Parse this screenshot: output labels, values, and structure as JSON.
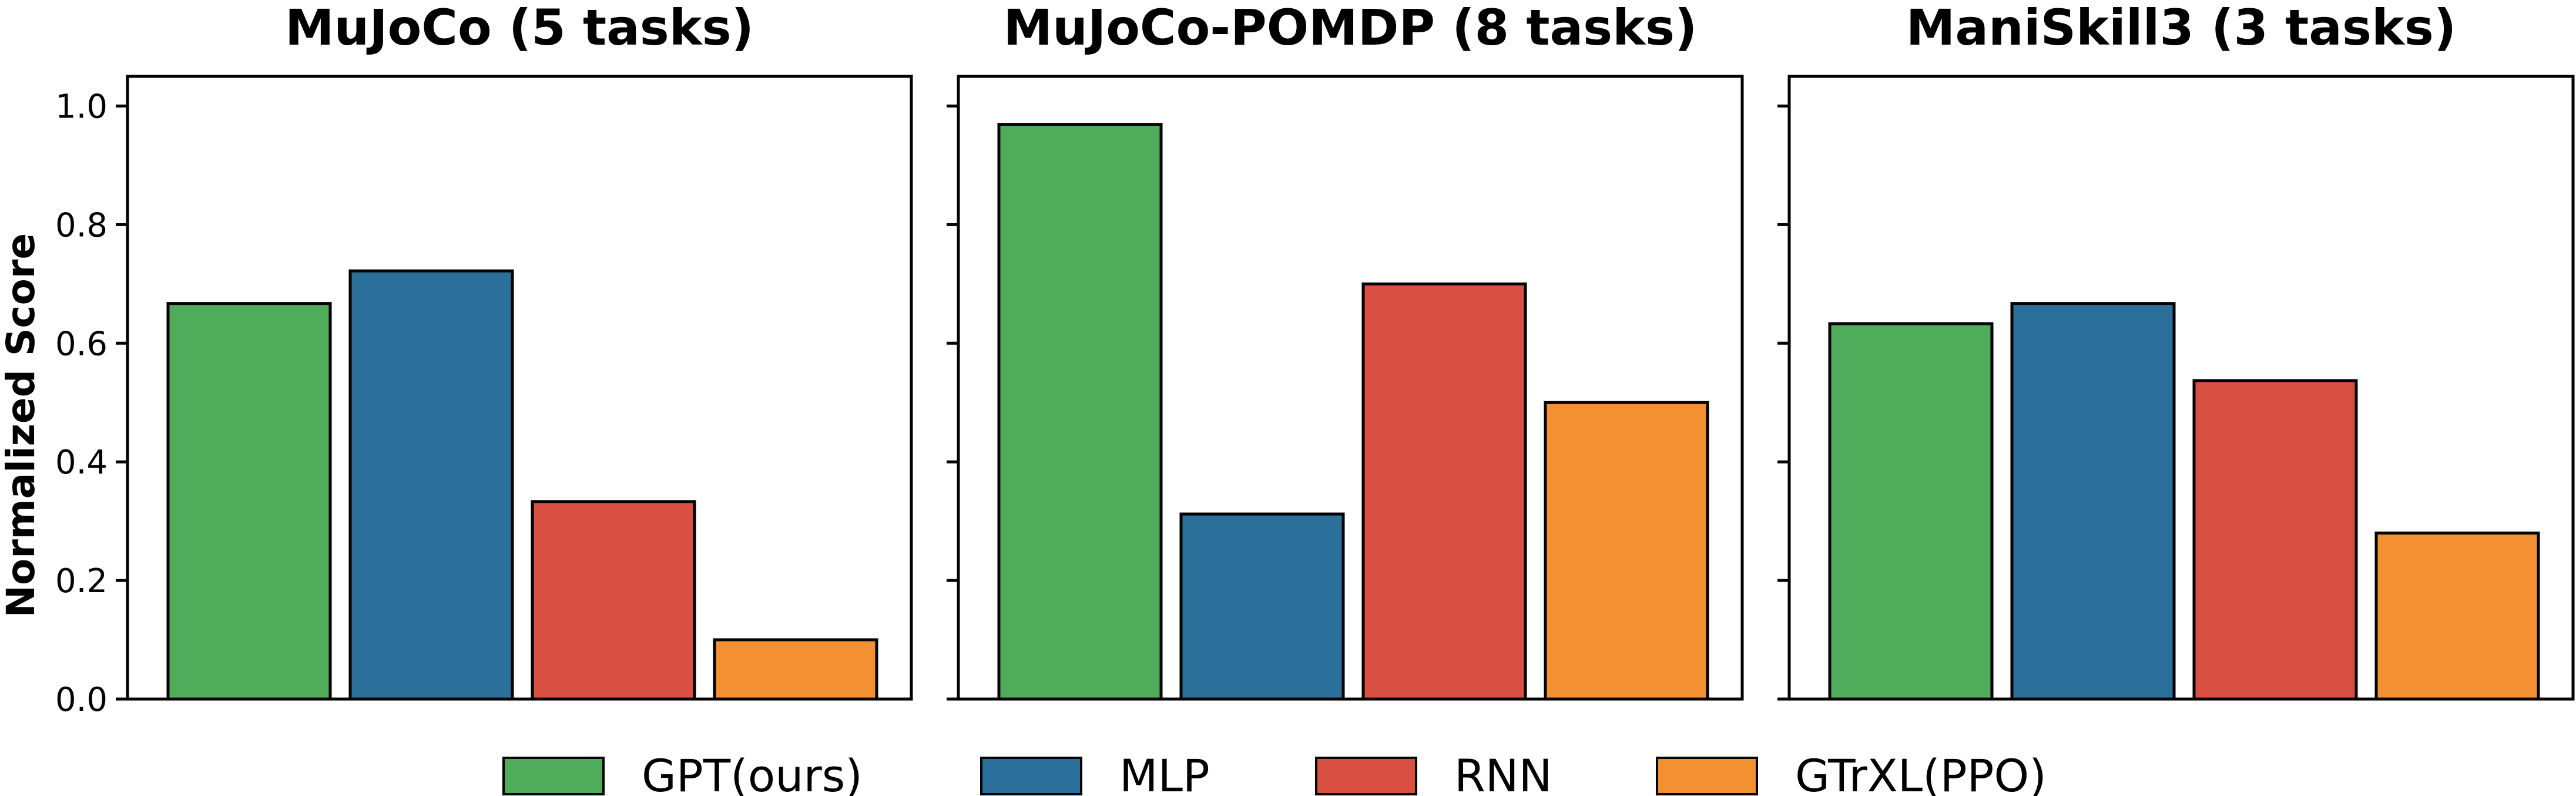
{
  "colors": {
    "GPT(ours)": "#4fac5b",
    "MLP": "#2b6f9b",
    "RNN": "#d95042",
    "GTrXL(PPO)": "#f39132"
  },
  "legend": [
    "GPT(ours)",
    "MLP",
    "RNN",
    "GTrXL(PPO)"
  ],
  "chart_data": [
    {
      "type": "bar",
      "title": "MuJoCo (5 tasks)",
      "ylabel": "Normalized Score",
      "categories": [
        "GPT(ours)",
        "MLP",
        "RNN",
        "GTrXL(PPO)"
      ],
      "values": [
        0.667,
        0.722,
        0.333,
        0.1
      ],
      "ylim": [
        0,
        1.05
      ],
      "yticks": [
        "0.0",
        "0.2",
        "0.4",
        "0.6",
        "0.8",
        "1.0"
      ],
      "grid": false
    },
    {
      "type": "bar",
      "title": "MuJoCo-POMDP (8 tasks)",
      "ylabel": "",
      "categories": [
        "GPT(ours)",
        "MLP",
        "RNN",
        "GTrXL(PPO)"
      ],
      "values": [
        0.969,
        0.312,
        0.7,
        0.5
      ],
      "ylim": [
        0,
        1.05
      ],
      "grid": false
    },
    {
      "type": "bar",
      "title": "ManiSkill3 (3 tasks)",
      "ylabel": "",
      "categories": [
        "GPT(ours)",
        "MLP",
        "RNN",
        "GTrXL(PPO)"
      ],
      "values": [
        0.633,
        0.667,
        0.537,
        0.28
      ],
      "ylim": [
        0,
        1.05
      ],
      "grid": false
    }
  ]
}
